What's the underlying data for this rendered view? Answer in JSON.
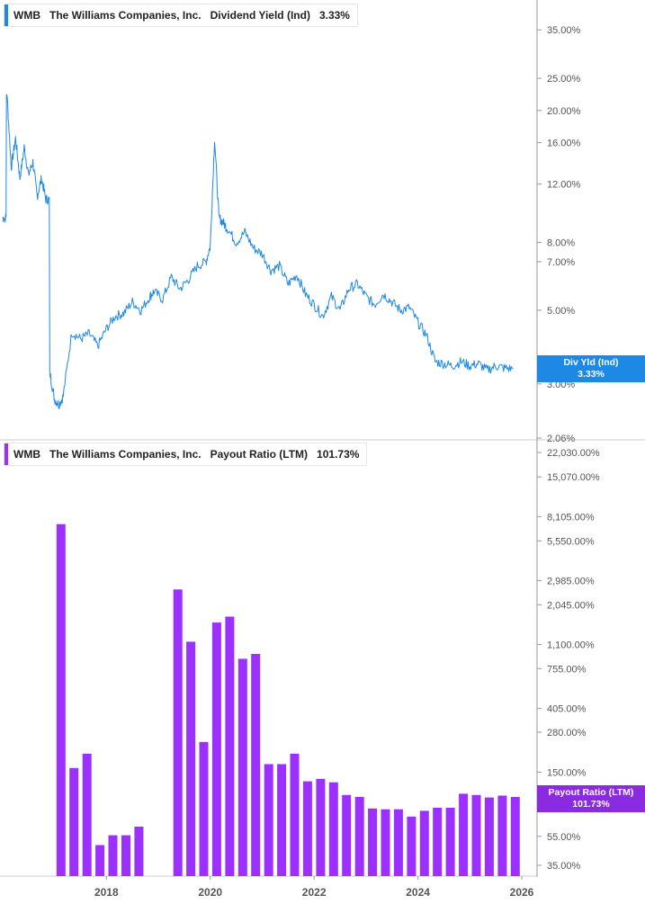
{
  "colors": {
    "line": "#1e88e5",
    "bar": "#9b30ff",
    "badge_blue": "#1e88e5",
    "badge_purple": "#8a2be2",
    "axis": "#999999",
    "divider": "#cccccc"
  },
  "chart_data": [
    {
      "type": "line",
      "ticker": "WMB",
      "company": "The Williams Companies, Inc.",
      "series_name": "Dividend Yield (Ind)",
      "last_value": "3.33%",
      "badge_label": "Div Yld (Ind)",
      "badge_value": "3.33%",
      "y_scale": "log",
      "ylim": [
        2.06,
        38
      ],
      "y_ticks": [
        {
          "v": 35,
          "label": "35.00%"
        },
        {
          "v": 25,
          "label": "25.00%"
        },
        {
          "v": 20,
          "label": "20.00%"
        },
        {
          "v": 16,
          "label": "16.00%"
        },
        {
          "v": 12,
          "label": "12.00%"
        },
        {
          "v": 8,
          "label": "8.00%"
        },
        {
          "v": 7,
          "label": "7.00%"
        },
        {
          "v": 5,
          "label": "5.00%"
        },
        {
          "v": 3,
          "label": "3.00%"
        },
        {
          "v": 2.06,
          "label": "2.06%"
        }
      ],
      "x": [
        "2016-01",
        "2016-02",
        "2016-03",
        "2016-04",
        "2016-05",
        "2016-06",
        "2016-07",
        "2016-08",
        "2016-09",
        "2016-10",
        "2016-11",
        "2016-12",
        "2017-01",
        "2017-02",
        "2017-03",
        "2017-05",
        "2017-07",
        "2017-09",
        "2017-11",
        "2018-01",
        "2018-03",
        "2018-05",
        "2018-07",
        "2018-09",
        "2018-11",
        "2018-12",
        "2019-02",
        "2019-04",
        "2019-06",
        "2019-08",
        "2019-10",
        "2019-12",
        "2020-01",
        "2020-02",
        "2020-03",
        "2020-04",
        "2020-05",
        "2020-07",
        "2020-09",
        "2020-11",
        "2021-01",
        "2021-03",
        "2021-05",
        "2021-07",
        "2021-09",
        "2021-11",
        "2022-01",
        "2022-03",
        "2022-05",
        "2022-07",
        "2022-09",
        "2022-11",
        "2023-01",
        "2023-03",
        "2023-05",
        "2023-07",
        "2023-09",
        "2023-11",
        "2024-01",
        "2024-03",
        "2024-05",
        "2024-07",
        "2024-09",
        "2024-11",
        "2025-01",
        "2025-03",
        "2025-05",
        "2025-07",
        "2025-09",
        "2025-11"
      ],
      "values": [
        9.5,
        22.5,
        13.5,
        16.5,
        12.5,
        15.5,
        12.8,
        14.0,
        11.0,
        12.5,
        10.8,
        3.2,
        2.7,
        2.6,
        2.75,
        4.3,
        4.1,
        4.25,
        3.9,
        4.4,
        4.8,
        4.9,
        5.3,
        5.0,
        5.5,
        5.7,
        5.4,
        6.3,
        5.8,
        6.2,
        6.8,
        7.0,
        7.8,
        16.5,
        9.5,
        9.2,
        8.8,
        8.0,
        8.6,
        7.7,
        7.4,
        6.6,
        6.8,
        6.0,
        6.4,
        5.6,
        5.2,
        4.8,
        5.5,
        5.0,
        5.8,
        6.0,
        5.5,
        5.2,
        5.6,
        5.3,
        5.0,
        5.1,
        4.6,
        4.2,
        3.5,
        3.45,
        3.4,
        3.5,
        3.4,
        3.45,
        3.3,
        3.4,
        3.35,
        3.33
      ]
    },
    {
      "type": "bar",
      "ticker": "WMB",
      "company": "The Williams Companies, Inc.",
      "series_name": "Payout Ratio (LTM)",
      "last_value": "101.73%",
      "badge_label": "Payout Ratio (LTM)",
      "badge_value": "101.73%",
      "y_scale": "log",
      "ylim": [
        30,
        24000
      ],
      "y_ticks": [
        {
          "v": 22030,
          "label": "22,030.00%"
        },
        {
          "v": 15070,
          "label": "15,070.00%"
        },
        {
          "v": 8105,
          "label": "8,105.00%"
        },
        {
          "v": 5550,
          "label": "5,550.00%"
        },
        {
          "v": 2985,
          "label": "2,985.00%"
        },
        {
          "v": 2045,
          "label": "2,045.00%"
        },
        {
          "v": 1100,
          "label": "1,100.00%"
        },
        {
          "v": 755,
          "label": "755.00%"
        },
        {
          "v": 405,
          "label": "405.00%"
        },
        {
          "v": 280,
          "label": "280.00%"
        },
        {
          "v": 150,
          "label": "150.00%"
        },
        {
          "v": 55,
          "label": "55.00%"
        },
        {
          "v": 35,
          "label": "35.00%"
        }
      ],
      "x": [
        "2017-Q1",
        "2017-Q2",
        "2017-Q3",
        "2017-Q4",
        "2018-Q1",
        "2018-Q2",
        "2018-Q3",
        "2019-Q2",
        "2019-Q3",
        "2019-Q4",
        "2020-Q1",
        "2020-Q2",
        "2020-Q3",
        "2020-Q4",
        "2021-Q1",
        "2021-Q2",
        "2021-Q3",
        "2021-Q4",
        "2022-Q1",
        "2022-Q2",
        "2022-Q3",
        "2022-Q4",
        "2023-Q1",
        "2023-Q2",
        "2023-Q3",
        "2023-Q4",
        "2024-Q1",
        "2024-Q2",
        "2024-Q3",
        "2024-Q4",
        "2025-Q1",
        "2025-Q2",
        "2025-Q3",
        "2025-Q4"
      ],
      "values": [
        7200,
        160,
        200,
        48,
        56,
        56,
        64,
        2600,
        1150,
        240,
        1550,
        1700,
        880,
        950,
        170,
        170,
        200,
        130,
        135,
        128,
        105,
        102,
        85,
        84,
        84,
        75,
        82,
        86,
        86,
        107,
        105,
        101,
        104,
        101.73
      ]
    }
  ],
  "x_axis": {
    "ticks": [
      {
        "year": 2018,
        "label": "2018"
      },
      {
        "year": 2020,
        "label": "2020"
      },
      {
        "year": 2022,
        "label": "2022"
      },
      {
        "year": 2024,
        "label": "2024"
      },
      {
        "year": 2026,
        "label": "2026"
      }
    ]
  }
}
